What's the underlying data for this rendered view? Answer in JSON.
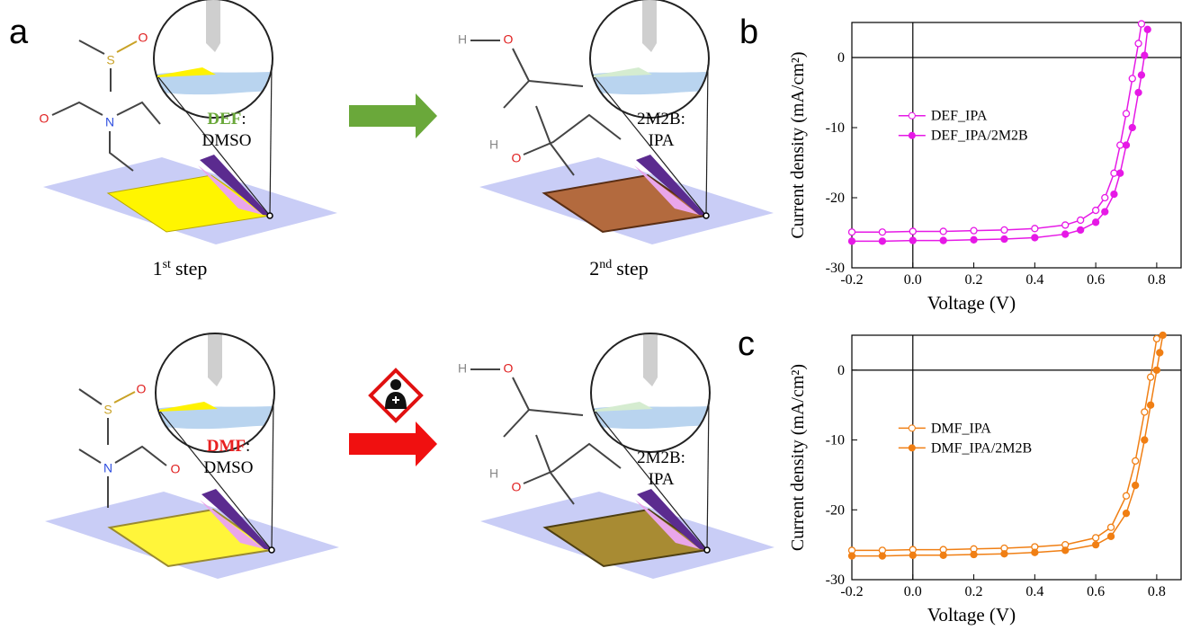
{
  "panel_labels": [
    "a",
    "b",
    "c"
  ],
  "diagram": {
    "rows": [
      {
        "first_step": {
          "solvent": "DEF",
          "separator": ":",
          "cosolvent": "DMSO",
          "atoms": [
            "S",
            "O",
            "O",
            "N"
          ]
        },
        "second_step": {
          "antisolvent": "2M2B:",
          "cosolvent": "IPA",
          "atoms": [
            "H",
            "O",
            "H",
            "O"
          ]
        }
      },
      {
        "first_step": {
          "solvent": "DMF",
          "separator": ":",
          "cosolvent": "DMSO",
          "atoms": [
            "S",
            "O",
            "N",
            "O"
          ]
        },
        "second_step": {
          "antisolvent": "2M2B:",
          "cosolvent": "IPA",
          "atoms": [
            "H",
            "O",
            "H",
            "O"
          ]
        }
      }
    ],
    "step_labels": [
      {
        "number": "1",
        "suffix": "st",
        "word": "step"
      },
      {
        "number": "2",
        "suffix": "nd",
        "word": "step"
      }
    ]
  },
  "chart_data": [
    {
      "type": "line",
      "x_label": "Voltage (V)",
      "y_label": "Current density (mA/cm²)",
      "xlim": [
        -0.2,
        0.88
      ],
      "ylim": [
        -30,
        5
      ],
      "xticks": [
        -0.2,
        {
          "value": 0,
          "label": "0.0"
        },
        0.2,
        0.4,
        0.6,
        0.8
      ],
      "yticks": [
        -30,
        -20,
        -10,
        0
      ],
      "zero_lines": true,
      "legend": "center-left",
      "x": [
        -0.2,
        -0.1,
        0,
        0.1,
        0.2,
        0.3,
        0.4,
        0.5,
        0.55,
        0.6,
        0.63,
        0.66,
        0.68,
        0.7,
        0.72,
        0.74,
        0.75,
        0.76,
        0.77
      ],
      "series": [
        {
          "name": "DEF_IPA",
          "color": "#e619e6",
          "marker": "open",
          "values": [
            -24.9,
            -24.9,
            -24.8,
            -24.8,
            -24.7,
            -24.6,
            -24.4,
            -23.9,
            -23.2,
            -21.8,
            -20,
            -16.5,
            -12.5,
            -8,
            -3,
            2,
            4.8,
            null,
            null
          ]
        },
        {
          "name": "DEF_IPA/2M2B",
          "color": "#e619e6",
          "marker": "filled",
          "values": [
            -26.2,
            -26.2,
            -26.1,
            -26.1,
            -26,
            -25.9,
            -25.7,
            -25.2,
            -24.6,
            -23.5,
            -22,
            -19.5,
            -16.5,
            -12.5,
            -10,
            -5,
            -2.5,
            0.3,
            4
          ]
        }
      ]
    },
    {
      "type": "line",
      "x_label": "Voltage (V)",
      "y_label": "Current density (mA/cm²)",
      "xlim": [
        -0.2,
        0.88
      ],
      "ylim": [
        -30,
        5
      ],
      "xticks": [
        -0.2,
        {
          "value": 0,
          "label": "0.0"
        },
        0.2,
        0.4,
        0.6,
        0.8
      ],
      "yticks": [
        -30,
        -20,
        -10,
        0
      ],
      "zero_lines": true,
      "legend": "center-left",
      "x": [
        -0.2,
        -0.1,
        0,
        0.1,
        0.2,
        0.3,
        0.4,
        0.5,
        0.6,
        0.65,
        0.7,
        0.73,
        0.76,
        0.78,
        0.8,
        0.81,
        0.82
      ],
      "series": [
        {
          "name": "DMF_IPA",
          "color": "#f07f14",
          "marker": "open",
          "values": [
            -25.8,
            -25.8,
            -25.7,
            -25.7,
            -25.6,
            -25.5,
            -25.3,
            -25,
            -24,
            -22.5,
            -18,
            -13,
            -6,
            -1,
            4.5,
            null,
            null
          ]
        },
        {
          "name": "DMF_IPA/2M2B",
          "color": "#f07f14",
          "marker": "filled",
          "values": [
            -26.6,
            -26.6,
            -26.5,
            -26.5,
            -26.4,
            -26.3,
            -26.1,
            -25.8,
            -25,
            -23.8,
            -20.5,
            -16.5,
            -10,
            -5,
            0,
            2.5,
            5
          ]
        }
      ]
    }
  ]
}
